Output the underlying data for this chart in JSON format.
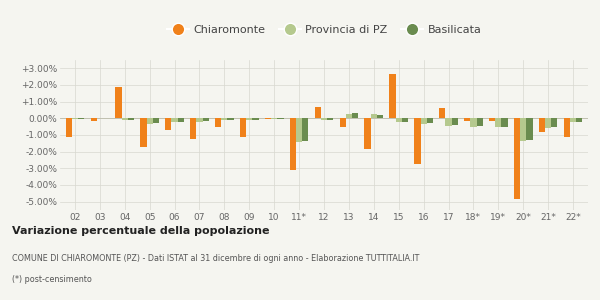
{
  "years": [
    "02",
    "03",
    "04",
    "05",
    "06",
    "07",
    "08",
    "09",
    "10",
    "11*",
    "12",
    "13",
    "14",
    "15",
    "16",
    "17",
    "18*",
    "19*",
    "20*",
    "21*",
    "22*"
  ],
  "chiaromonte": [
    -1.1,
    -0.15,
    1.9,
    -1.75,
    -0.7,
    -1.25,
    -0.55,
    -1.1,
    -0.05,
    -3.1,
    0.7,
    -0.55,
    -1.85,
    2.65,
    -2.75,
    0.6,
    -0.15,
    -0.15,
    -4.85,
    -0.8,
    -1.1
  ],
  "provincia_pz": [
    -0.05,
    0.0,
    -0.1,
    -0.35,
    -0.25,
    -0.2,
    -0.1,
    -0.1,
    -0.05,
    -1.4,
    -0.1,
    0.25,
    0.25,
    -0.2,
    -0.35,
    -0.45,
    -0.5,
    -0.55,
    -1.35,
    -0.6,
    -0.25
  ],
  "basilicata": [
    -0.05,
    0.0,
    -0.1,
    -0.3,
    -0.2,
    -0.15,
    -0.1,
    -0.1,
    -0.05,
    -1.35,
    -0.1,
    0.3,
    0.2,
    -0.2,
    -0.3,
    -0.4,
    -0.45,
    -0.5,
    -1.3,
    -0.55,
    -0.2
  ],
  "color_chiaromonte": "#f0811a",
  "color_provincia": "#b5c98e",
  "color_basilicata": "#6a8c4f",
  "bg_color": "#f5f5f0",
  "grid_color": "#d8d8d0",
  "ylim": [
    -5.5,
    3.5
  ],
  "yticks": [
    -5.0,
    -4.0,
    -3.0,
    -2.0,
    -1.0,
    0.0,
    1.0,
    2.0,
    3.0
  ],
  "ytick_labels": [
    "-5.00%",
    "-4.00%",
    "-3.00%",
    "-2.00%",
    "-1.00%",
    "0.00%",
    "+1.00%",
    "+2.00%",
    "+3.00%"
  ],
  "title_bold": "Variazione percentuale della popolazione",
  "subtitle1": "COMUNE DI CHIAROMONTE (PZ) - Dati ISTAT al 31 dicembre di ogni anno - Elaborazione TUTTITALIA.IT",
  "subtitle2": "(*) post-censimento",
  "bar_width": 0.25
}
